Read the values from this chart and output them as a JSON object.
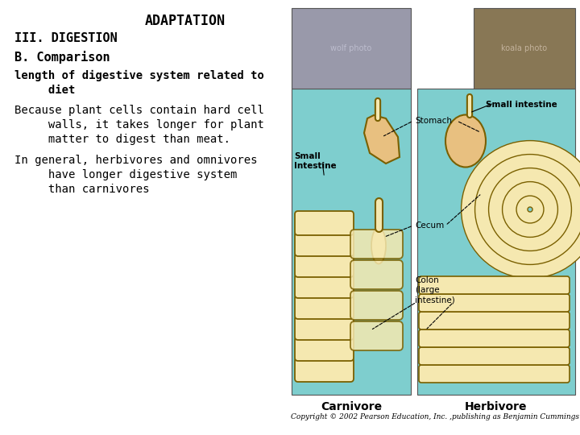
{
  "title": "ADAPTATION",
  "line1": "III. DIGESTION",
  "line2": "B. Comparison",
  "line3a": "length of digestive system related to",
  "line3b": "     diet",
  "line4a": "Because plant cells contain hard cell",
  "line4b": "     walls, it takes longer for plant",
  "line4c": "     matter to digest than meat.",
  "line5a": "In general, herbivores and omnivores",
  "line5b": "     have longer digestive system",
  "line5c": "     than carnivores",
  "copyright": "Copyright © 2002 Pearson Education, Inc. ,publishing as Benjamin Cummings",
  "bg_color": "#ffffff",
  "text_color": "#000000",
  "panel_color": "#7ECECE",
  "gut_fill": "#F5E8B0",
  "gut_edge": "#7A6000",
  "stomach_fill": "#E8C080",
  "label_stomach": "Stomach",
  "label_cecum": "Cecum",
  "label_colon": "Colon\n(large\nintestine)",
  "label_small_int_left": "Small\nIntestine",
  "label_small_int_right": "Small intestine",
  "label_carnivore": "Carnivore",
  "label_herbivore": "Herbivore",
  "photo_wolf_color": "#888899",
  "photo_koala_color": "#778866",
  "font_mono": "monospace",
  "font_sans": "sans-serif",
  "font_serif": "serif"
}
